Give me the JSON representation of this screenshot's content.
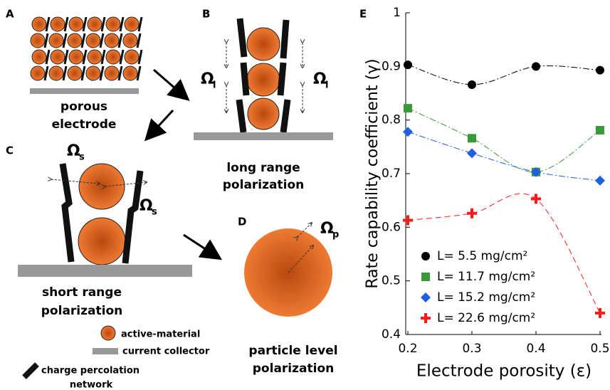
{
  "panels": {
    "a": {
      "label": "A",
      "caption": [
        "porous",
        "electrode"
      ]
    },
    "b": {
      "label": "B",
      "caption": [
        "long range",
        "polarization"
      ],
      "omega": [
        {
          "symbol": "Ω",
          "subscript": "l"
        },
        {
          "symbol": "Ω",
          "subscript": "l"
        }
      ]
    },
    "c": {
      "label": "C",
      "caption": [
        "short range",
        "polarization"
      ],
      "omega": [
        {
          "symbol": "Ω",
          "subscript": "s"
        },
        {
          "symbol": "Ω",
          "subscript": "s"
        }
      ]
    },
    "d": {
      "label": "D",
      "caption": [
        "particle level",
        "polarization"
      ],
      "omega": [
        {
          "symbol": "Ω",
          "subscript": "p"
        }
      ]
    },
    "legend": {
      "active": "active-material",
      "collector": "current collector",
      "network": [
        "charge percolation",
        "network"
      ]
    }
  },
  "chart_data": {
    "type": "line",
    "panel_label": "E",
    "x_label": "Electrode porosity (ε)",
    "y_label": "Rate capability coefficient (γ)",
    "x": [
      0.2,
      0.3,
      0.4,
      0.5
    ],
    "xlim": [
      0.2,
      0.5
    ],
    "xticks": [
      0.2,
      0.3,
      0.4,
      0.5
    ],
    "ylim": [
      0.4,
      1
    ],
    "yticks": [
      0.4,
      0.5,
      0.6,
      0.7,
      0.8,
      0.9,
      1
    ],
    "grid": false,
    "legend": "lower left",
    "series": [
      {
        "name": "L= 5.5 mg/cm²",
        "color": "#000000",
        "marker": "circle",
        "linestyle": "dashdot",
        "values": [
          0.903,
          0.866,
          0.9,
          0.893
        ]
      },
      {
        "name": "L= 11.7 mg/cm²",
        "color": "#3a9a3a",
        "marker": "square",
        "linestyle": "dashdot",
        "values": [
          0.822,
          0.766,
          0.703,
          0.781
        ]
      },
      {
        "name": "L= 15.2 mg/cm²",
        "color": "#1f5fe0",
        "marker": "diamond",
        "linestyle": "dashdot",
        "values": [
          0.778,
          0.738,
          0.703,
          0.687
        ]
      },
      {
        "name": "L= 22.6 mg/cm²",
        "color": "#ff1a1a",
        "marker": "plus",
        "linestyle": "dashed",
        "values": [
          0.613,
          0.626,
          0.653,
          0.44
        ]
      }
    ]
  }
}
